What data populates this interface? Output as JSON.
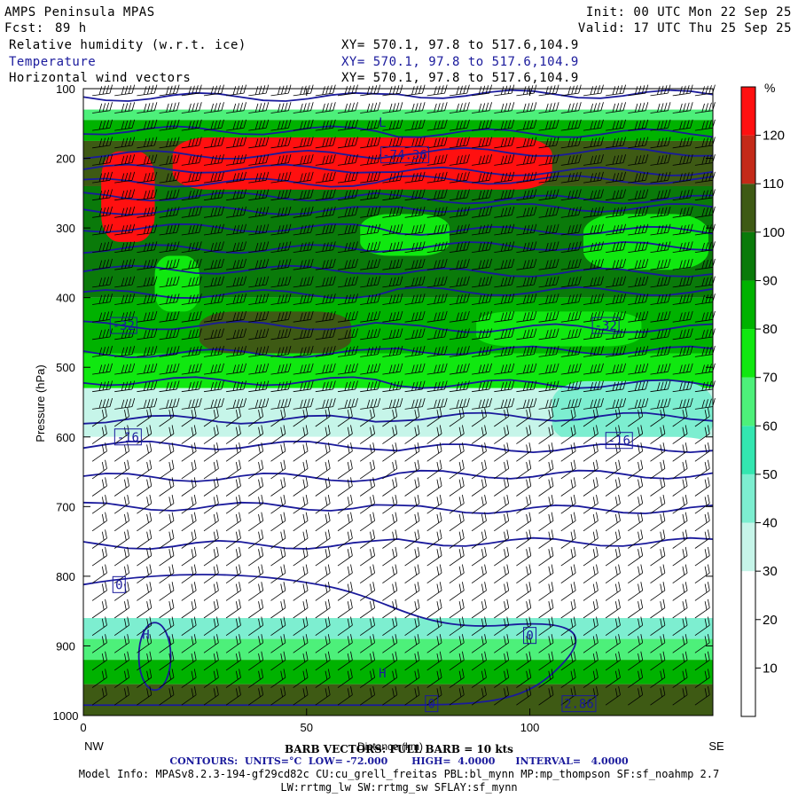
{
  "header": {
    "model": "AMPS Peninsula MPAS",
    "forecast_label": "Fcst:",
    "forecast_value": "89 h",
    "init": "Init: 00 UTC Mon 22 Sep 25",
    "valid": "Valid: 17 UTC Thu 25 Sep 25",
    "field1": "Relative humidity (w.r.t. ice)",
    "field2": "Temperature",
    "field3": "Horizontal wind vectors",
    "xy1": "XY= 570.1, 97.8 to 517.6,104.9",
    "xy2": "XY= 570.1, 97.8 to 517.6,104.9",
    "xy3": "XY= 570.1, 97.8 to 517.6,104.9"
  },
  "chart_data": {
    "type": "heatmap",
    "ylabel": "Pressure (hPa)",
    "xlabel": "Distance (km)",
    "x_ticks": [
      0,
      50,
      100
    ],
    "y_ticks": [
      100,
      200,
      300,
      400,
      500,
      600,
      700,
      800,
      900,
      1000
    ],
    "xlim": [
      0,
      141
    ],
    "ylim": [
      1000,
      100
    ],
    "x_end_left": "NW",
    "x_end_right": "SE",
    "colorbar": {
      "unit": "%",
      "levels": [
        10,
        20,
        30,
        40,
        50,
        60,
        70,
        80,
        90,
        100,
        110,
        120
      ],
      "colors": [
        "#ffffff",
        "#ffffff",
        "#ffffff",
        "#c6f5e9",
        "#7deed0",
        "#33e6b0",
        "#4df07a",
        "#10e810",
        "#00b200",
        "#0a7a0a",
        "#3e5a14",
        "#c42a18",
        "#ff1010"
      ]
    },
    "rh_bands": [
      {
        "p": [
          100,
          130
        ],
        "value": 5
      },
      {
        "p": [
          130,
          145
        ],
        "value": 65
      },
      {
        "p": [
          145,
          175
        ],
        "value": 85
      },
      {
        "p": [
          175,
          240
        ],
        "value": 105
      },
      {
        "p": [
          240,
          400
        ],
        "value": 95
      },
      {
        "p": [
          400,
          480
        ],
        "value": 85
      },
      {
        "p": [
          480,
          530
        ],
        "value": 75
      },
      {
        "p": [
          530,
          600
        ],
        "value": 35
      },
      {
        "p": [
          600,
          860
        ],
        "value": 10
      },
      {
        "p": [
          860,
          890
        ],
        "value": 45
      },
      {
        "p": [
          890,
          920
        ],
        "value": 65
      },
      {
        "p": [
          920,
          955
        ],
        "value": 85
      },
      {
        "p": [
          955,
          1000
        ],
        "value": 105
      }
    ],
    "rh_patches": [
      {
        "x": [
          20,
          105
        ],
        "p": [
          170,
          245
        ],
        "value": 120
      },
      {
        "x": [
          4,
          16
        ],
        "p": [
          190,
          320
        ],
        "value": 120
      },
      {
        "x": [
          62,
          82
        ],
        "p": [
          280,
          340
        ],
        "value": 75
      },
      {
        "x": [
          112,
          140
        ],
        "p": [
          280,
          360
        ],
        "value": 75
      },
      {
        "x": [
          16,
          26
        ],
        "p": [
          340,
          420
        ],
        "value": 75
      },
      {
        "x": [
          26,
          60
        ],
        "p": [
          420,
          480
        ],
        "value": 105
      },
      {
        "x": [
          88,
          125
        ],
        "p": [
          420,
          470
        ],
        "value": 75
      },
      {
        "x": [
          105,
          141
        ],
        "p": [
          520,
          610
        ],
        "value": 45
      },
      {
        "x": [
          0,
          141
        ],
        "p": [
          600,
          640
        ],
        "value": 25
      }
    ],
    "isotherm_levels": [
      -72,
      -68,
      -64,
      -60,
      -56,
      -52,
      -48,
      -44,
      -40,
      -36,
      -32,
      -28,
      -24,
      -20,
      -16,
      -12,
      -8,
      -4,
      0,
      4
    ],
    "isotherm_pressures": [
      112,
      160,
      195,
      215,
      235,
      255,
      275,
      300,
      330,
      360,
      395,
      440,
      480,
      520,
      575,
      612,
      658,
      700,
      755
    ],
    "contour_labels": [
      {
        "text": "-74.36",
        "x": 72,
        "p": 195
      },
      {
        "text": "-32",
        "x": 9,
        "p": 440
      },
      {
        "text": "-32",
        "x": 117,
        "p": 440
      },
      {
        "text": "-16",
        "x": 10,
        "p": 600
      },
      {
        "text": "-16",
        "x": 120,
        "p": 605
      },
      {
        "text": "0",
        "x": 8,
        "p": 812
      },
      {
        "text": "0",
        "x": 100,
        "p": 885
      },
      {
        "text": "0",
        "x": 78,
        "p": 983
      },
      {
        "text": "2.86",
        "x": 111,
        "p": 983
      }
    ],
    "extrema_markers": [
      {
        "text": "L",
        "x": 67,
        "p": 155
      },
      {
        "text": "H",
        "x": 14,
        "p": 890
      },
      {
        "text": "H",
        "x": 67,
        "p": 945
      }
    ],
    "barb_reference": "BARB VECTORS: FULL BARB = 10 kts"
  },
  "footer": {
    "contours": "CONTOURS:  UNITS=°C  LOW= -72.000       HIGH=  4.0000      INTERVAL=   4.0000",
    "model_info": "Model Info: MPASv8.2.3-194-gf29cd82c CU:cu_grell_freitas PBL:bl_mynn MP:mp_thompson SF:sf_noahmp 2.7",
    "model_info2": "LW:rrtmg_lw SW:rrtmg_sw SFLAY:sf_mynn"
  },
  "colors": {
    "contour": "#1a1a9c"
  }
}
